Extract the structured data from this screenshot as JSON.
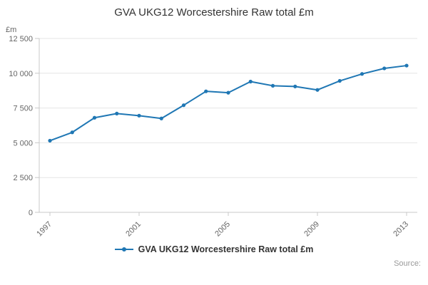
{
  "title": "GVA UKG12 Worcestershire Raw total £m",
  "legend": {
    "label": "GVA UKG12 Worcestershire Raw total £m"
  },
  "source": {
    "label": "Source:"
  },
  "colors": {
    "line": "#1f77b4",
    "grid": "#e6e6e6",
    "axis": "#c8c8c8",
    "tick_text": "#666666",
    "title": "#333333"
  },
  "chart_data": {
    "type": "line",
    "title": "GVA UKG12 Worcestershire Raw total £m",
    "xlabel": "",
    "ylabel": "£m",
    "x": [
      1997,
      1998,
      1999,
      2000,
      2001,
      2002,
      2003,
      2004,
      2005,
      2006,
      2007,
      2008,
      2009,
      2010,
      2011,
      2012,
      2013
    ],
    "series": [
      {
        "name": "GVA UKG12 Worcestershire Raw total £m",
        "values": [
          5150,
          5750,
          6800,
          7100,
          6950,
          6750,
          7700,
          8700,
          8600,
          9400,
          9100,
          9050,
          8800,
          9450,
          9950,
          10350,
          10550
        ]
      }
    ],
    "ylim": [
      0,
      12500
    ],
    "yticks": [
      0,
      2500,
      5000,
      7500,
      10000,
      12500
    ],
    "ytick_labels": [
      "0",
      "2 500",
      "5 000",
      "7 500",
      "10 000",
      "12 500"
    ],
    "xticks": [
      1997,
      2001,
      2005,
      2009,
      2013
    ],
    "grid": true,
    "legend_position": "bottom",
    "marker": "circle"
  }
}
